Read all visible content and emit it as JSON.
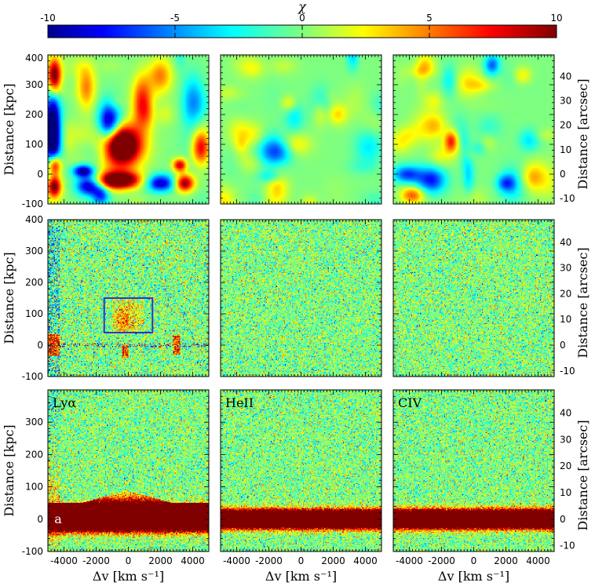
{
  "chart_data": {
    "type": "heatmap",
    "colorbar": {
      "label": "χ",
      "range": [
        -10,
        10
      ],
      "ticks": [
        "-10",
        "-5",
        "0",
        "5",
        "10"
      ],
      "colormap": "jet",
      "placement": "top"
    },
    "xlabel": "Δv [km s⁻¹]",
    "ylabel_left": "Distance [kpc]",
    "ylabel_right": "Distance [arcsec]",
    "xlim": [
      -5000,
      5000
    ],
    "ylim": [
      -100,
      400
    ],
    "xticks": [
      -4000,
      -2000,
      0,
      2000,
      4000
    ],
    "xtick_labels": [
      "-4000",
      "-2000",
      "0",
      "2000",
      "4000"
    ],
    "yticks_kpc": [
      -100,
      0,
      100,
      200,
      300,
      400
    ],
    "ytick_labels_kpc_top": [
      "-100",
      "0",
      "100",
      "200",
      "300",
      "400"
    ],
    "ytick_labels_kpc_bottom": [
      "-100",
      "0",
      "100",
      "200",
      "300"
    ],
    "yticks_arcsec": [
      -10,
      0,
      10,
      20,
      30,
      40
    ],
    "ytick_labels_arcsec": [
      "-10",
      "0",
      "10",
      "20",
      "30",
      "40"
    ],
    "columns": [
      {
        "line": "Lyα",
        "label": "Lyα"
      },
      {
        "line": "HeII",
        "label": "HeII"
      },
      {
        "line": "CIV",
        "label": "CIV"
      }
    ],
    "rows": [
      {
        "content": "smoothed significance map"
      },
      {
        "content": "unsmoothed significance map"
      },
      {
        "content": "spectrum-stacked map"
      }
    ],
    "highlight_box": {
      "panel": "row2-col1",
      "x": [
        -1500,
        1500
      ],
      "y": [
        40,
        150
      ],
      "color": "#3333cc"
    },
    "annotation": {
      "text": "a",
      "panel": "row3-col1",
      "x": -4600,
      "y": 0
    }
  }
}
